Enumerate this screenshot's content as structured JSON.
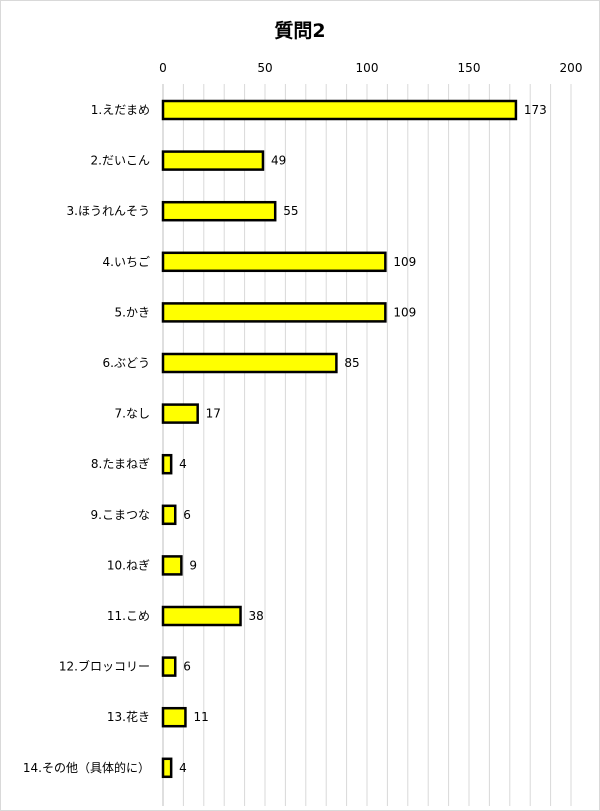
{
  "chart_data": {
    "type": "bar",
    "orientation": "horizontal",
    "title": "質問2",
    "xlabel": "",
    "ylabel": "",
    "xlim": [
      0,
      200
    ],
    "ticks": [
      0,
      50,
      100,
      150,
      200
    ],
    "tick_labels": [
      "0",
      "50",
      "100",
      "150",
      "200"
    ],
    "axis_position": "top",
    "grid": "vertical, every 10",
    "categories": [
      "1.えだまめ",
      "2.だいこん",
      "3.ほうれんそう",
      "4.いちご",
      "5.かき",
      "6.ぶどう",
      "7.なし",
      "8.たまねぎ",
      "9.こまつな",
      "10.ねぎ",
      "11.こめ",
      "12.ブロッコリー",
      "13.花き",
      "14.その他（具体的に）"
    ],
    "values": [
      173,
      49,
      55,
      109,
      109,
      85,
      17,
      4,
      6,
      9,
      38,
      6,
      11,
      4
    ],
    "bar_color": "#FFFF00",
    "bar_edge_color": "#000000"
  }
}
